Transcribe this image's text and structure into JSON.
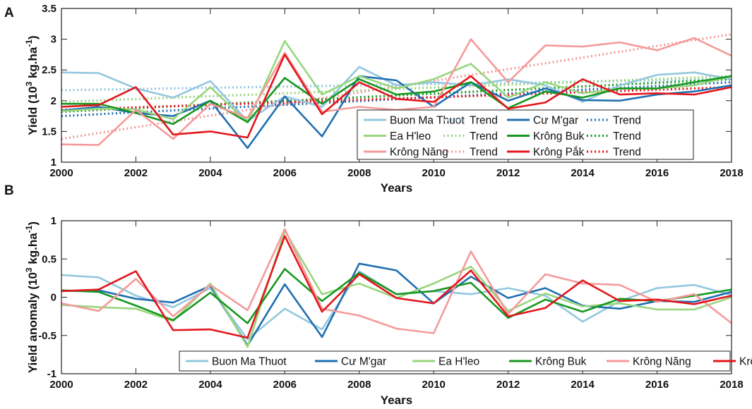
{
  "chart_data": [
    {
      "panel": "A",
      "type": "line",
      "xlabel": "Years",
      "ylabel": "Yield (10",
      "ylabel_exp": "3",
      "ylabel_unit": " kg.ha",
      "ylabel_unit_exp": "-1",
      "ylabel_close": ")",
      "xlim": [
        2000,
        2018
      ],
      "ylim": [
        1,
        3.5
      ],
      "xticks": [
        2000,
        2002,
        2004,
        2006,
        2008,
        2010,
        2012,
        2014,
        2016,
        2018
      ],
      "yticks": [
        1,
        1.5,
        2,
        2.5,
        3,
        3.5
      ],
      "ytick_labels": [
        "1",
        "1.5",
        "2",
        "2.5",
        "3",
        "3.5"
      ],
      "x": [
        2000,
        2001,
        2002,
        2003,
        2004,
        2005,
        2006,
        2007,
        2008,
        2009,
        2010,
        2011,
        2012,
        2013,
        2014,
        2015,
        2016,
        2017,
        2018
      ],
      "legend_position": "bottom-right",
      "legend_columns": 4,
      "legend": [
        {
          "label": "Buon Ma Thuot",
          "color": "#93c7df",
          "style": "solid"
        },
        {
          "label": "Trend",
          "color": "#93c7df",
          "style": "dotted"
        },
        {
          "label": "Cư M'gar",
          "color": "#1f6fb0",
          "style": "solid"
        },
        {
          "label": "Trend",
          "color": "#1f6fb0",
          "style": "dotted"
        },
        {
          "label": "Ea H'leo",
          "color": "#98d67e",
          "style": "solid"
        },
        {
          "label": "Trend",
          "color": "#98d67e",
          "style": "dotted"
        },
        {
          "label": "Krông Buk",
          "color": "#16971f",
          "style": "solid"
        },
        {
          "label": "Trend",
          "color": "#16971f",
          "style": "dotted"
        },
        {
          "label": "Krông Năng",
          "color": "#f59a9a",
          "style": "solid"
        },
        {
          "label": "Trend",
          "color": "#f59a9a",
          "style": "dotted"
        },
        {
          "label": "Krông Pắk",
          "color": "#e3161c",
          "style": "solid"
        },
        {
          "label": "Trend",
          "color": "#e3161c",
          "style": "dotted"
        }
      ],
      "series": [
        {
          "name": "Buon Ma Thuot",
          "color": "#93c7df",
          "values": [
            2.46,
            2.45,
            2.2,
            2.05,
            2.32,
            1.67,
            2.07,
            1.9,
            2.55,
            2.25,
            2.3,
            2.25,
            2.35,
            2.25,
            1.98,
            2.25,
            2.42,
            2.46,
            2.35
          ]
        },
        {
          "name": "Cư M'gar",
          "color": "#1f6fb0",
          "values": [
            1.84,
            1.9,
            1.8,
            1.75,
            2.0,
            1.23,
            2.07,
            1.42,
            2.4,
            2.33,
            1.9,
            2.3,
            2.0,
            2.2,
            2.01,
            2.0,
            2.1,
            2.15,
            2.25
          ]
        },
        {
          "name": "Ea H'leo",
          "color": "#98d67e",
          "values": [
            1.83,
            1.87,
            1.86,
            1.7,
            2.22,
            1.65,
            2.97,
            2.1,
            2.4,
            2.2,
            2.35,
            2.6,
            2.05,
            2.3,
            2.12,
            2.2,
            2.2,
            2.25,
            2.4
          ]
        },
        {
          "name": "Krông Buk",
          "color": "#16971f",
          "values": [
            1.95,
            1.95,
            1.8,
            1.62,
            2.0,
            1.65,
            2.37,
            1.95,
            2.35,
            2.1,
            2.15,
            2.3,
            1.88,
            2.15,
            2.05,
            2.2,
            2.2,
            2.3,
            2.4
          ]
        },
        {
          "name": "Krông Năng",
          "color": "#f59a9a",
          "values": [
            1.29,
            1.28,
            1.85,
            1.38,
            1.95,
            1.72,
            2.78,
            1.82,
            1.9,
            1.85,
            1.9,
            3.0,
            2.3,
            2.9,
            2.88,
            2.95,
            2.82,
            3.02,
            2.73
          ]
        },
        {
          "name": "Krông Pắk",
          "color": "#e3161c",
          "values": [
            1.9,
            1.93,
            2.22,
            1.45,
            1.5,
            1.4,
            2.75,
            1.78,
            2.3,
            2.03,
            1.98,
            2.4,
            1.87,
            1.97,
            2.35,
            2.1,
            2.12,
            2.1,
            2.22
          ]
        }
      ],
      "trends": [
        {
          "name": "Trend",
          "color": "#93c7df",
          "start": 2.17,
          "end": 2.35
        },
        {
          "name": "Trend",
          "color": "#1f6fb0",
          "start": 1.75,
          "end": 2.3
        },
        {
          "name": "Trend",
          "color": "#98d67e",
          "start": 1.98,
          "end": 2.4
        },
        {
          "name": "Trend",
          "color": "#16971f",
          "start": 1.82,
          "end": 2.35
        },
        {
          "name": "Trend",
          "color": "#f59a9a",
          "start": 1.38,
          "end": 3.08
        },
        {
          "name": "Trend",
          "color": "#e3161c",
          "start": 1.85,
          "end": 2.22
        }
      ]
    },
    {
      "panel": "B",
      "type": "line",
      "xlabel": "Years",
      "ylabel": "Yield anomaly (10",
      "ylabel_exp": "3",
      "ylabel_unit": " kg.ha",
      "ylabel_unit_exp": "-1",
      "ylabel_close": ")",
      "xlim": [
        2000,
        2018
      ],
      "ylim": [
        -1,
        1
      ],
      "xticks": [
        2000,
        2002,
        2004,
        2006,
        2008,
        2010,
        2012,
        2014,
        2016,
        2018
      ],
      "yticks": [
        -1,
        -0.5,
        0,
        0.5,
        1
      ],
      "ytick_labels": [
        "-1",
        "-0.5",
        "0",
        "0.5",
        "1"
      ],
      "x": [
        2000,
        2001,
        2002,
        2003,
        2004,
        2005,
        2006,
        2007,
        2008,
        2009,
        2010,
        2011,
        2012,
        2013,
        2014,
        2015,
        2016,
        2017,
        2018
      ],
      "legend_position": "bottom",
      "legend_columns": 6,
      "legend": [
        {
          "label": "Buon Ma Thuot",
          "color": "#93c7df",
          "style": "solid"
        },
        {
          "label": "Cư M'gar",
          "color": "#1f6fb0",
          "style": "solid"
        },
        {
          "label": "Ea H'leo",
          "color": "#98d67e",
          "style": "solid"
        },
        {
          "label": "Krông Buk",
          "color": "#16971f",
          "style": "solid"
        },
        {
          "label": "Krông Năng",
          "color": "#f59a9a",
          "style": "solid"
        },
        {
          "label": "Krông Pắk",
          "color": "#e3161c",
          "style": "solid"
        }
      ],
      "series": [
        {
          "name": "Buon Ma Thuot",
          "color": "#93c7df",
          "values": [
            0.29,
            0.26,
            0.02,
            -0.13,
            0.12,
            -0.55,
            -0.15,
            -0.42,
            0.34,
            0.04,
            0.08,
            0.04,
            0.12,
            0.02,
            -0.32,
            -0.05,
            0.12,
            0.16,
            0.03
          ]
        },
        {
          "name": "Cư M'gar",
          "color": "#1f6fb0",
          "values": [
            0.08,
            0.09,
            -0.02,
            -0.07,
            0.15,
            -0.63,
            0.17,
            -0.52,
            0.44,
            0.35,
            -0.08,
            0.27,
            -0.01,
            0.12,
            -0.11,
            -0.15,
            -0.05,
            -0.06,
            0.07
          ]
        },
        {
          "name": "Ea H'leo",
          "color": "#98d67e",
          "values": [
            -0.1,
            -0.13,
            -0.15,
            -0.31,
            0.18,
            -0.65,
            0.87,
            0.04,
            0.18,
            -0.01,
            0.18,
            0.4,
            -0.18,
            0.05,
            -0.12,
            -0.08,
            -0.16,
            -0.16,
            0.0
          ]
        },
        {
          "name": "Krông Buk",
          "color": "#16971f",
          "values": [
            0.09,
            0.07,
            -0.11,
            -0.3,
            0.06,
            -0.34,
            0.37,
            -0.05,
            0.32,
            0.04,
            0.08,
            0.19,
            -0.27,
            -0.03,
            -0.19,
            -0.02,
            -0.05,
            0.02,
            0.1
          ]
        },
        {
          "name": "Krông Năng",
          "color": "#f59a9a",
          "values": [
            -0.08,
            -0.18,
            0.24,
            -0.25,
            0.16,
            -0.17,
            0.89,
            -0.15,
            -0.24,
            -0.41,
            -0.47,
            0.6,
            -0.22,
            0.3,
            0.18,
            0.16,
            -0.06,
            0.04,
            -0.34
          ]
        },
        {
          "name": "Krông Pắk",
          "color": "#e3161c",
          "values": [
            0.08,
            0.1,
            0.34,
            -0.43,
            -0.42,
            -0.53,
            0.8,
            -0.19,
            0.3,
            -0.01,
            -0.08,
            0.35,
            -0.25,
            -0.14,
            0.22,
            -0.05,
            -0.03,
            -0.09,
            0.02
          ]
        }
      ]
    }
  ]
}
